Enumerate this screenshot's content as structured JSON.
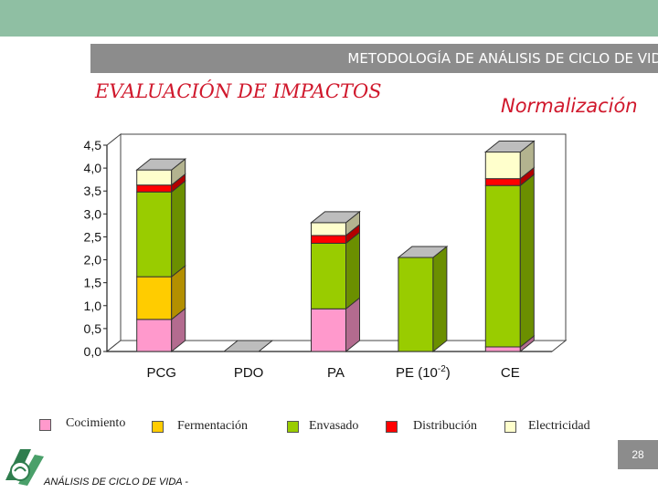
{
  "slide": {
    "title": "METODOLOGÍA DE ANÁLISIS DE CICLO DE VIDA",
    "heading": "EVALUACIÓN DE IMPACTOS",
    "subheading": "Normalización",
    "page_number": "28",
    "footer": "ANÁLISIS DE CICLO DE VIDA -"
  },
  "chart_data": {
    "type": "bar",
    "stacked": true,
    "categories": [
      "PCG",
      "PDO",
      "PA",
      "PE (10",
      "CE"
    ],
    "category_superscripts": [
      "",
      "",
      "",
      "-2",
      ""
    ],
    "category_suffixes": [
      "",
      "",
      "",
      ")",
      ""
    ],
    "yticks": [
      "0,0",
      "0,5",
      "1,0",
      "1,5",
      "2,0",
      "2,5",
      "3,0",
      "3,5",
      "4,0",
      "4,5"
    ],
    "ylim": [
      0,
      4.5
    ],
    "series": [
      {
        "name": "Cocimiento",
        "color": "#ff99cc",
        "values": [
          0.7,
          0.0,
          0.93,
          0.0,
          0.1
        ]
      },
      {
        "name": "Fermentación",
        "color": "#ffcc00",
        "values": [
          0.93,
          0.0,
          0.0,
          0.0,
          0.0
        ]
      },
      {
        "name": "Envasado",
        "color": "#99cc00",
        "values": [
          1.85,
          0.0,
          1.43,
          2.05,
          3.52
        ]
      },
      {
        "name": "Distribución",
        "color": "#ff0000",
        "values": [
          0.15,
          0.0,
          0.17,
          0.0,
          0.15
        ]
      },
      {
        "name": "Electricidad",
        "color": "#ffffcc",
        "values": [
          0.33,
          0.0,
          0.28,
          0.0,
          0.58
        ]
      }
    ],
    "grid": false,
    "legend_position": "bottom"
  }
}
